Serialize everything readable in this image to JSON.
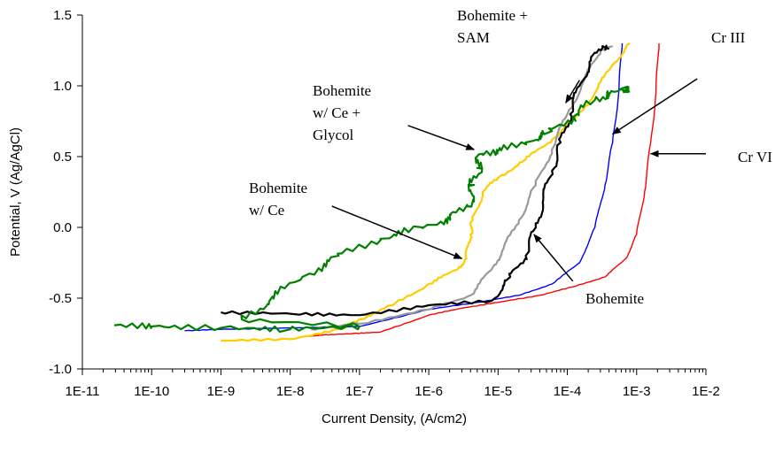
{
  "chart_data": {
    "type": "line",
    "xlabel": "Current Density, (A/cm2)",
    "ylabel": "Potential, V (Ag/AgCl)",
    "xscale": "log",
    "xlim": [
      1e-11,
      0.01
    ],
    "ylim": [
      -1.0,
      1.5
    ],
    "grid": false,
    "legend": "none",
    "x_ticks": [
      {
        "v": 1e-11,
        "label": "1E-11"
      },
      {
        "v": 1e-10,
        "label": "1E-10"
      },
      {
        "v": 1e-09,
        "label": "1E-9"
      },
      {
        "v": 1e-08,
        "label": "1E-8"
      },
      {
        "v": 1e-07,
        "label": "1E-7"
      },
      {
        "v": 1e-06,
        "label": "1E-6"
      },
      {
        "v": 1e-05,
        "label": "1E-5"
      },
      {
        "v": 0.0001,
        "label": "1E-4"
      },
      {
        "v": 0.001,
        "label": "1E-3"
      },
      {
        "v": 0.01,
        "label": "1E-2"
      }
    ],
    "y_ticks": [
      {
        "v": -1.0,
        "label": "-1.0"
      },
      {
        "v": -0.5,
        "label": "-0.5"
      },
      {
        "v": 0.0,
        "label": "0.0"
      },
      {
        "v": 0.5,
        "label": "0.5"
      },
      {
        "v": 1.0,
        "label": "1.0"
      },
      {
        "v": 1.5,
        "label": "1.5"
      }
    ],
    "series": [
      {
        "color": "#ff0000",
        "points": [
          [
            1.8e-08,
            -0.77
          ],
          [
            3e-08,
            -0.76
          ],
          [
            8e-08,
            -0.75
          ],
          [
            2e-07,
            -0.74
          ],
          [
            1e-06,
            -0.62
          ],
          [
            3e-06,
            -0.57
          ],
          [
            1e-05,
            -0.53
          ],
          [
            4e-05,
            -0.48
          ],
          [
            0.00012,
            -0.42
          ],
          [
            0.00035,
            -0.35
          ],
          [
            0.0007,
            -0.22
          ],
          [
            0.001,
            -0.05
          ],
          [
            0.0013,
            0.25
          ],
          [
            0.0016,
            0.6
          ],
          [
            0.0019,
            0.95
          ],
          [
            0.0021,
            1.3
          ]
        ]
      },
      {
        "color": "#0000ff",
        "points": [
          [
            3e-10,
            -0.73
          ],
          [
            1e-09,
            -0.72
          ],
          [
            1e-08,
            -0.71
          ],
          [
            1e-07,
            -0.7
          ],
          [
            1e-06,
            -0.58
          ],
          [
            5e-06,
            -0.53
          ],
          [
            2e-05,
            -0.48
          ],
          [
            6e-05,
            -0.4
          ],
          [
            0.00015,
            -0.25
          ],
          [
            0.00025,
            0.0
          ],
          [
            0.00035,
            0.3
          ],
          [
            0.00045,
            0.6
          ],
          [
            0.00055,
            0.95
          ],
          [
            0.00062,
            1.3
          ]
        ]
      },
      {
        "color": "#ffcc00",
        "points": [
          [
            1e-09,
            -0.8
          ],
          [
            1e-08,
            -0.79
          ],
          [
            5e-08,
            -0.72
          ],
          [
            1e-07,
            -0.65
          ],
          [
            3e-07,
            -0.55
          ],
          [
            1e-06,
            -0.4
          ],
          [
            2.5e-06,
            -0.3
          ],
          [
            3.5e-06,
            -0.22
          ],
          [
            4e-06,
            -0.05
          ],
          [
            4.3e-06,
            0.05
          ],
          [
            6e-06,
            0.25
          ],
          [
            1e-05,
            0.35
          ],
          [
            2.5e-05,
            0.48
          ],
          [
            6e-05,
            0.62
          ],
          [
            0.00012,
            0.75
          ],
          [
            0.00025,
            0.95
          ],
          [
            0.00045,
            1.15
          ],
          [
            0.0008,
            1.3
          ]
        ]
      },
      {
        "color": "#999999",
        "points": [
          [
            2e-08,
            -0.72
          ],
          [
            1e-07,
            -0.68
          ],
          [
            1e-06,
            -0.58
          ],
          [
            4e-06,
            -0.48
          ],
          [
            8e-06,
            -0.3
          ],
          [
            1.2e-05,
            -0.15
          ],
          [
            2e-05,
            0.05
          ],
          [
            3.5e-05,
            0.3
          ],
          [
            6e-05,
            0.55
          ],
          [
            0.0001,
            0.8
          ],
          [
            0.00018,
            1.05
          ],
          [
            0.0003,
            1.25
          ],
          [
            0.00045,
            1.28
          ]
        ]
      },
      {
        "color": "#000000",
        "points": [
          [
            1e-09,
            -0.6
          ],
          [
            1e-08,
            -0.61
          ],
          [
            1e-07,
            -0.62
          ],
          [
            1e-06,
            -0.55
          ],
          [
            8e-06,
            -0.52
          ],
          [
            1.5e-05,
            -0.35
          ],
          [
            2.5e-05,
            -0.2
          ],
          [
            3.5e-05,
            0.0
          ],
          [
            4.5e-05,
            0.2
          ],
          [
            6e-05,
            0.4
          ],
          [
            8e-05,
            0.6
          ],
          [
            0.00011,
            0.8
          ],
          [
            0.00015,
            1.0
          ],
          [
            0.00022,
            1.18
          ],
          [
            0.00032,
            1.28
          ],
          [
            0.0004,
            1.26
          ]
        ]
      },
      {
        "color": "#008000",
        "points": [
          [
            3e-11,
            -0.69
          ],
          [
            1e-10,
            -0.7
          ],
          [
            1e-09,
            -0.71
          ],
          [
            1e-08,
            -0.72
          ],
          [
            1e-07,
            -0.7
          ],
          [
            2e-09,
            -0.65
          ],
          [
            5e-09,
            -0.52
          ],
          [
            1.5e-08,
            -0.35
          ],
          [
            5e-08,
            -0.2
          ],
          [
            2e-07,
            -0.08
          ],
          [
            8e-07,
            0.0
          ],
          [
            2e-06,
            0.06
          ],
          [
            3.5e-06,
            0.15
          ],
          [
            4.5e-06,
            0.3
          ],
          [
            5e-06,
            0.42
          ],
          [
            6e-06,
            0.52
          ],
          [
            1e-05,
            0.54
          ],
          [
            2.5e-05,
            0.6
          ],
          [
            6e-05,
            0.68
          ],
          [
            0.00012,
            0.78
          ],
          [
            0.00025,
            0.9
          ],
          [
            0.0004,
            0.93
          ],
          [
            0.0006,
            0.98
          ],
          [
            0.0008,
            0.96
          ]
        ]
      }
    ],
    "annotations": [
      {
        "lines": [
          "Bohemite +",
          "SAM"
        ],
        "arrow_from": [
          0.00015,
          1.04
        ],
        "arrow_to": [
          9.5e-05,
          0.88
        ]
      },
      {
        "lines": [
          "Cr III"
        ],
        "arrow_from": [
          0.0075,
          1.05
        ],
        "arrow_to": [
          0.00045,
          0.66
        ]
      },
      {
        "lines": [
          "Bohemite",
          "w/ Ce +",
          "Glycol"
        ],
        "arrow_from": [
          5e-07,
          0.72
        ],
        "arrow_to": [
          4.5e-06,
          0.55
        ]
      },
      {
        "lines": [
          "Cr VI"
        ],
        "arrow_from": [
          0.01,
          0.52
        ],
        "arrow_to": [
          0.0016,
          0.52
        ]
      },
      {
        "lines": [
          "Bohemite",
          "w/ Ce"
        ],
        "arrow_from": [
          4e-08,
          0.15
        ],
        "arrow_to": [
          3e-06,
          -0.22
        ]
      },
      {
        "lines": [
          "Bohemite"
        ],
        "arrow_from": [
          0.00012,
          -0.38
        ],
        "arrow_to": [
          3.3e-05,
          -0.05
        ]
      }
    ]
  }
}
